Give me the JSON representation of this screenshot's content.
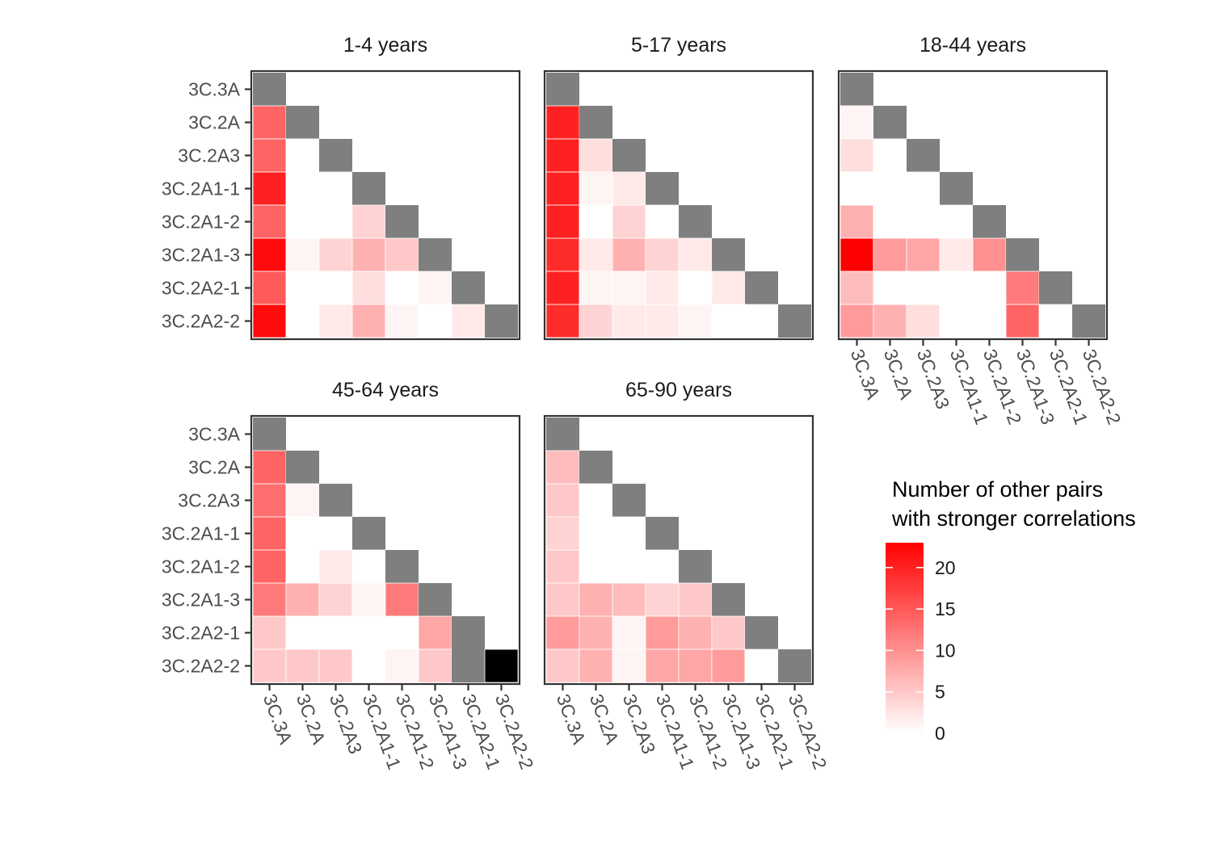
{
  "chart_data": {
    "type": "heatmap",
    "categories": [
      "3C.3A",
      "3C.2A",
      "3C.2A3",
      "3C.2A1-1",
      "3C.2A1-2",
      "3C.2A1-3",
      "3C.2A2-1",
      "3C.2A2-2"
    ],
    "diagonal_color": "#7f7f7f",
    "color_scale": {
      "low": "#ffffff",
      "high": "#ff0000",
      "min": 0,
      "max": 23
    },
    "legend": {
      "title_line1": "Number of other pairs",
      "title_line2": "with stronger correlations",
      "ticks": [
        0,
        5,
        10,
        15,
        20
      ],
      "tick_labels": [
        "0",
        "5",
        "10",
        "15",
        "20"
      ],
      "placement": "right"
    },
    "panels": [
      {
        "title": "1-4 years",
        "values": [
          [
            null
          ],
          [
            14,
            null
          ],
          [
            14,
            0,
            null
          ],
          [
            20,
            0,
            0,
            null
          ],
          [
            14,
            0,
            0,
            4,
            null
          ],
          [
            22,
            1,
            4,
            7,
            5,
            null
          ],
          [
            15,
            0,
            0,
            3,
            0,
            1,
            null
          ],
          [
            22,
            0,
            2,
            7,
            1,
            0,
            2,
            null
          ]
        ]
      },
      {
        "title": "5-17 years",
        "values": [
          [
            null
          ],
          [
            20,
            null
          ],
          [
            20,
            3,
            null
          ],
          [
            20,
            1,
            2,
            null
          ],
          [
            20,
            0,
            4,
            0,
            null
          ],
          [
            19,
            2,
            7,
            4,
            2,
            null
          ],
          [
            20,
            1,
            1,
            2,
            0,
            2,
            null
          ],
          [
            19,
            4,
            2,
            2,
            1,
            0,
            0,
            null
          ]
        ]
      },
      {
        "title": "18-44 years",
        "values": [
          [
            null
          ],
          [
            1,
            null
          ],
          [
            3,
            0,
            null
          ],
          [
            0,
            0,
            0,
            null
          ],
          [
            7,
            0,
            0,
            0,
            null
          ],
          [
            23,
            9,
            8,
            2,
            10,
            null
          ],
          [
            6,
            0,
            0,
            0,
            0,
            12,
            null
          ],
          [
            9,
            7,
            3,
            0,
            0,
            14,
            0,
            null
          ]
        ]
      },
      {
        "title": "45-64 years",
        "values": [
          [
            null
          ],
          [
            14,
            null
          ],
          [
            13,
            1,
            null
          ],
          [
            14,
            0,
            0,
            null
          ],
          [
            14,
            0,
            2,
            0,
            null
          ],
          [
            12,
            7,
            4,
            1,
            12,
            null
          ],
          [
            5,
            0,
            0,
            0,
            0,
            8,
            null
          ],
          [
            5,
            5,
            5,
            0,
            1,
            5,
            null
          ]
        ]
      },
      {
        "title": "65-90 years",
        "values": [
          [
            null
          ],
          [
            6,
            null
          ],
          [
            5,
            0,
            null
          ],
          [
            4,
            0,
            0,
            null
          ],
          [
            5,
            0,
            0,
            0,
            null
          ],
          [
            5,
            7,
            6,
            4,
            5,
            null
          ],
          [
            9,
            7,
            1,
            9,
            7,
            5,
            null
          ],
          [
            5,
            7,
            1,
            8,
            8,
            9,
            0,
            null
          ]
        ]
      }
    ]
  }
}
